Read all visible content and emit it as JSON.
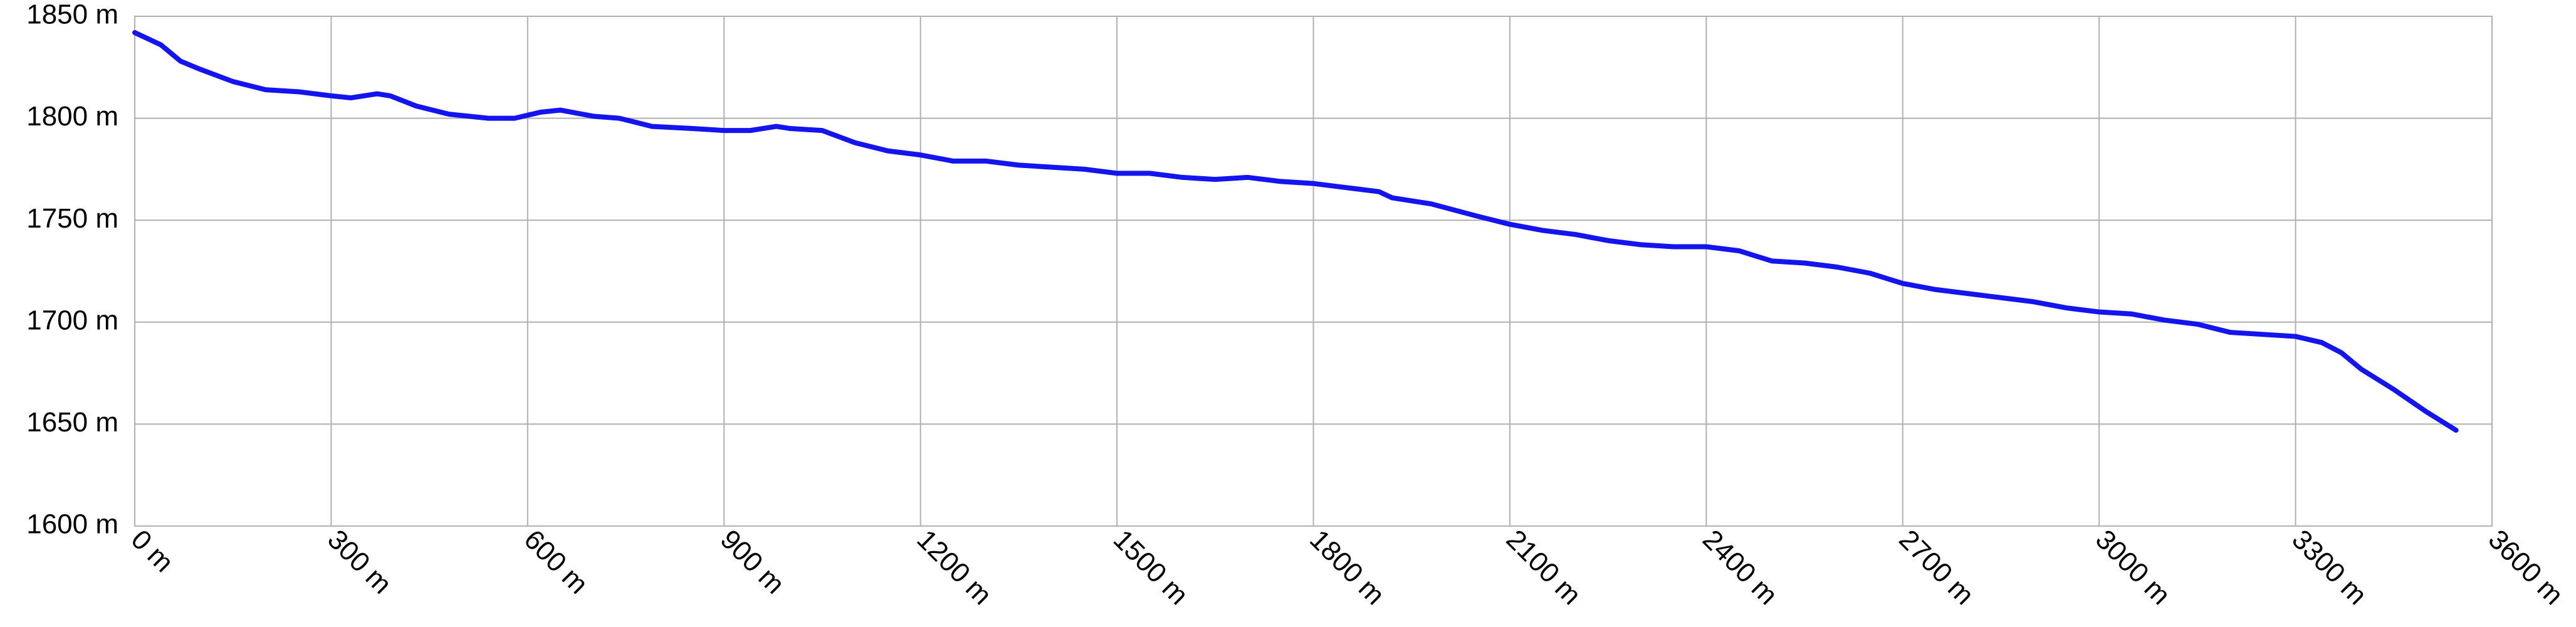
{
  "chart_data": {
    "type": "line",
    "x": [
      0,
      40,
      70,
      100,
      150,
      200,
      250,
      300,
      330,
      370,
      390,
      430,
      480,
      540,
      580,
      620,
      650,
      700,
      740,
      790,
      850,
      900,
      940,
      980,
      1000,
      1050,
      1100,
      1150,
      1200,
      1250,
      1300,
      1350,
      1400,
      1450,
      1500,
      1550,
      1600,
      1650,
      1700,
      1750,
      1800,
      1850,
      1900,
      1920,
      1980,
      2050,
      2100,
      2150,
      2200,
      2250,
      2300,
      2350,
      2400,
      2450,
      2500,
      2550,
      2600,
      2650,
      2700,
      2750,
      2800,
      2850,
      2900,
      2950,
      3000,
      3050,
      3100,
      3150,
      3200,
      3250,
      3300,
      3340,
      3370,
      3400,
      3450,
      3500,
      3545
    ],
    "series": [
      {
        "color": "#1414ee",
        "values": [
          1842,
          1836,
          1828,
          1824,
          1818,
          1814,
          1813,
          1811,
          1810,
          1812,
          1811,
          1806,
          1802,
          1800,
          1800,
          1803,
          1804,
          1801,
          1800,
          1796,
          1795,
          1794,
          1794,
          1796,
          1795,
          1794,
          1788,
          1784,
          1782,
          1779,
          1779,
          1777,
          1776,
          1775,
          1773,
          1773,
          1771,
          1770,
          1771,
          1769,
          1768,
          1766,
          1764,
          1761,
          1758,
          1752,
          1748,
          1745,
          1743,
          1740,
          1738,
          1737,
          1737,
          1735,
          1730,
          1729,
          1727,
          1724,
          1719,
          1716,
          1714,
          1712,
          1710,
          1707,
          1705,
          1704,
          1701,
          1699,
          1695,
          1694,
          1693,
          1690,
          1685,
          1677,
          1667,
          1656,
          1647
        ]
      }
    ],
    "xlim": [
      0,
      3600
    ],
    "xticks": [
      {
        "value": 0,
        "label": "0 m"
      },
      {
        "value": 300,
        "label": "300 m"
      },
      {
        "value": 600,
        "label": "600 m"
      },
      {
        "value": 900,
        "label": "900 m"
      },
      {
        "value": 1200,
        "label": "1200 m"
      },
      {
        "value": 1500,
        "label": "1500 m"
      },
      {
        "value": 1800,
        "label": "1800 m"
      },
      {
        "value": 2100,
        "label": "2100 m"
      },
      {
        "value": 2400,
        "label": "2400 m"
      },
      {
        "value": 2700,
        "label": "2700 m"
      },
      {
        "value": 3000,
        "label": "3000 m"
      },
      {
        "value": 3300,
        "label": "3300 m"
      },
      {
        "value": 3600,
        "label": "3600 m"
      }
    ],
    "ylim": [
      1600,
      1850
    ],
    "yticks": [
      {
        "value": 1600,
        "label": "1600 m"
      },
      {
        "value": 1650,
        "label": "1650 m"
      },
      {
        "value": 1700,
        "label": "1700 m"
      },
      {
        "value": 1750,
        "label": "1750 m"
      },
      {
        "value": 1800,
        "label": "1800 m"
      },
      {
        "value": 1850,
        "label": "1850 m"
      }
    ],
    "grid": true
  }
}
